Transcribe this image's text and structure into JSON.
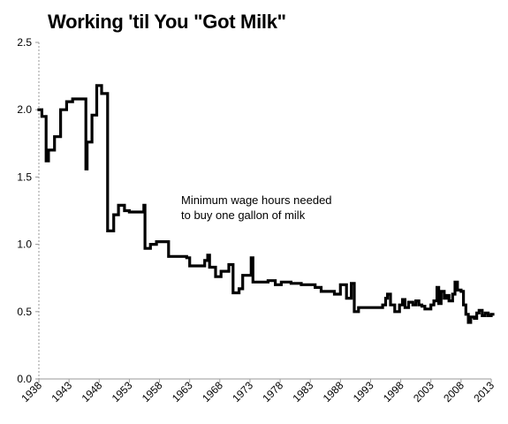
{
  "chart_data": {
    "type": "line",
    "title": "Working 'til You \"Got Milk\"",
    "annotation": [
      "Minimum wage hours needed",
      "to buy one gallon of milk"
    ],
    "xlabel": "",
    "ylabel": "",
    "xlim": [
      1938,
      2013
    ],
    "ylim": [
      0,
      2.5
    ],
    "x_ticks": [
      "1938",
      "1943",
      "1948",
      "1953",
      "1958",
      "1963",
      "1968",
      "1973",
      "1978",
      "1983",
      "1988",
      "1993",
      "1998",
      "2003",
      "2008",
      "2013"
    ],
    "y_ticks": [
      "0.0",
      "0.5",
      "1.0",
      "1.5",
      "2.0",
      "2.5"
    ],
    "grid": false,
    "line_color": "#000000",
    "series": [
      {
        "step": true,
        "points": [
          [
            1938.0,
            2.0
          ],
          [
            1938.5,
            1.95
          ],
          [
            1939.2,
            1.62
          ],
          [
            1939.6,
            1.7
          ],
          [
            1940.6,
            1.8
          ],
          [
            1941.6,
            2.0
          ],
          [
            1942.6,
            2.06
          ],
          [
            1943.6,
            2.08
          ],
          [
            1945.8,
            1.56
          ],
          [
            1946.0,
            1.76
          ],
          [
            1946.8,
            1.96
          ],
          [
            1947.6,
            2.18
          ],
          [
            1948.4,
            2.12
          ],
          [
            1949.4,
            1.1
          ],
          [
            1950.4,
            1.22
          ],
          [
            1951.2,
            1.29
          ],
          [
            1952.2,
            1.25
          ],
          [
            1953.0,
            1.24
          ],
          [
            1955.4,
            1.29
          ],
          [
            1955.6,
            0.97
          ],
          [
            1956.5,
            1.0
          ],
          [
            1957.5,
            1.02
          ],
          [
            1959.5,
            0.91
          ],
          [
            1962.5,
            0.9
          ],
          [
            1963.0,
            0.84
          ],
          [
            1965.5,
            0.88
          ],
          [
            1966.0,
            0.92
          ],
          [
            1966.3,
            0.83
          ],
          [
            1967.3,
            0.76
          ],
          [
            1968.2,
            0.8
          ],
          [
            1969.5,
            0.85
          ],
          [
            1970.2,
            0.64
          ],
          [
            1971.2,
            0.67
          ],
          [
            1971.8,
            0.77
          ],
          [
            1973.2,
            0.9
          ],
          [
            1973.5,
            0.72
          ],
          [
            1976.0,
            0.73
          ],
          [
            1977.2,
            0.7
          ],
          [
            1978.2,
            0.72
          ],
          [
            1979.8,
            0.71
          ],
          [
            1981.5,
            0.7
          ],
          [
            1983.8,
            0.68
          ],
          [
            1984.8,
            0.65
          ],
          [
            1987.0,
            0.63
          ],
          [
            1988.0,
            0.7
          ],
          [
            1989.0,
            0.6
          ],
          [
            1989.8,
            0.71
          ],
          [
            1990.3,
            0.5
          ],
          [
            1991.0,
            0.53
          ],
          [
            1995.0,
            0.55
          ],
          [
            1995.5,
            0.6
          ],
          [
            1995.8,
            0.63
          ],
          [
            1996.3,
            0.55
          ],
          [
            1997.0,
            0.5
          ],
          [
            1997.8,
            0.55
          ],
          [
            1998.3,
            0.59
          ],
          [
            1998.7,
            0.53
          ],
          [
            1999.3,
            0.57
          ],
          [
            2000.0,
            0.55
          ],
          [
            2000.5,
            0.58
          ],
          [
            2001.0,
            0.55
          ],
          [
            2001.5,
            0.54
          ],
          [
            2002.0,
            0.52
          ],
          [
            2003.0,
            0.55
          ],
          [
            2003.5,
            0.58
          ],
          [
            2004.0,
            0.68
          ],
          [
            2004.3,
            0.56
          ],
          [
            2004.7,
            0.65
          ],
          [
            2005.2,
            0.6
          ],
          [
            2005.6,
            0.62
          ],
          [
            2006.0,
            0.58
          ],
          [
            2006.6,
            0.63
          ],
          [
            2007.0,
            0.72
          ],
          [
            2007.4,
            0.66
          ],
          [
            2008.0,
            0.65
          ],
          [
            2008.4,
            0.55
          ],
          [
            2008.8,
            0.48
          ],
          [
            2009.2,
            0.42
          ],
          [
            2009.6,
            0.46
          ],
          [
            2010.2,
            0.45
          ],
          [
            2010.6,
            0.49
          ],
          [
            2011.0,
            0.51
          ],
          [
            2011.5,
            0.47
          ],
          [
            2012.0,
            0.49
          ],
          [
            2012.5,
            0.47
          ],
          [
            2013.0,
            0.48
          ]
        ]
      }
    ]
  }
}
